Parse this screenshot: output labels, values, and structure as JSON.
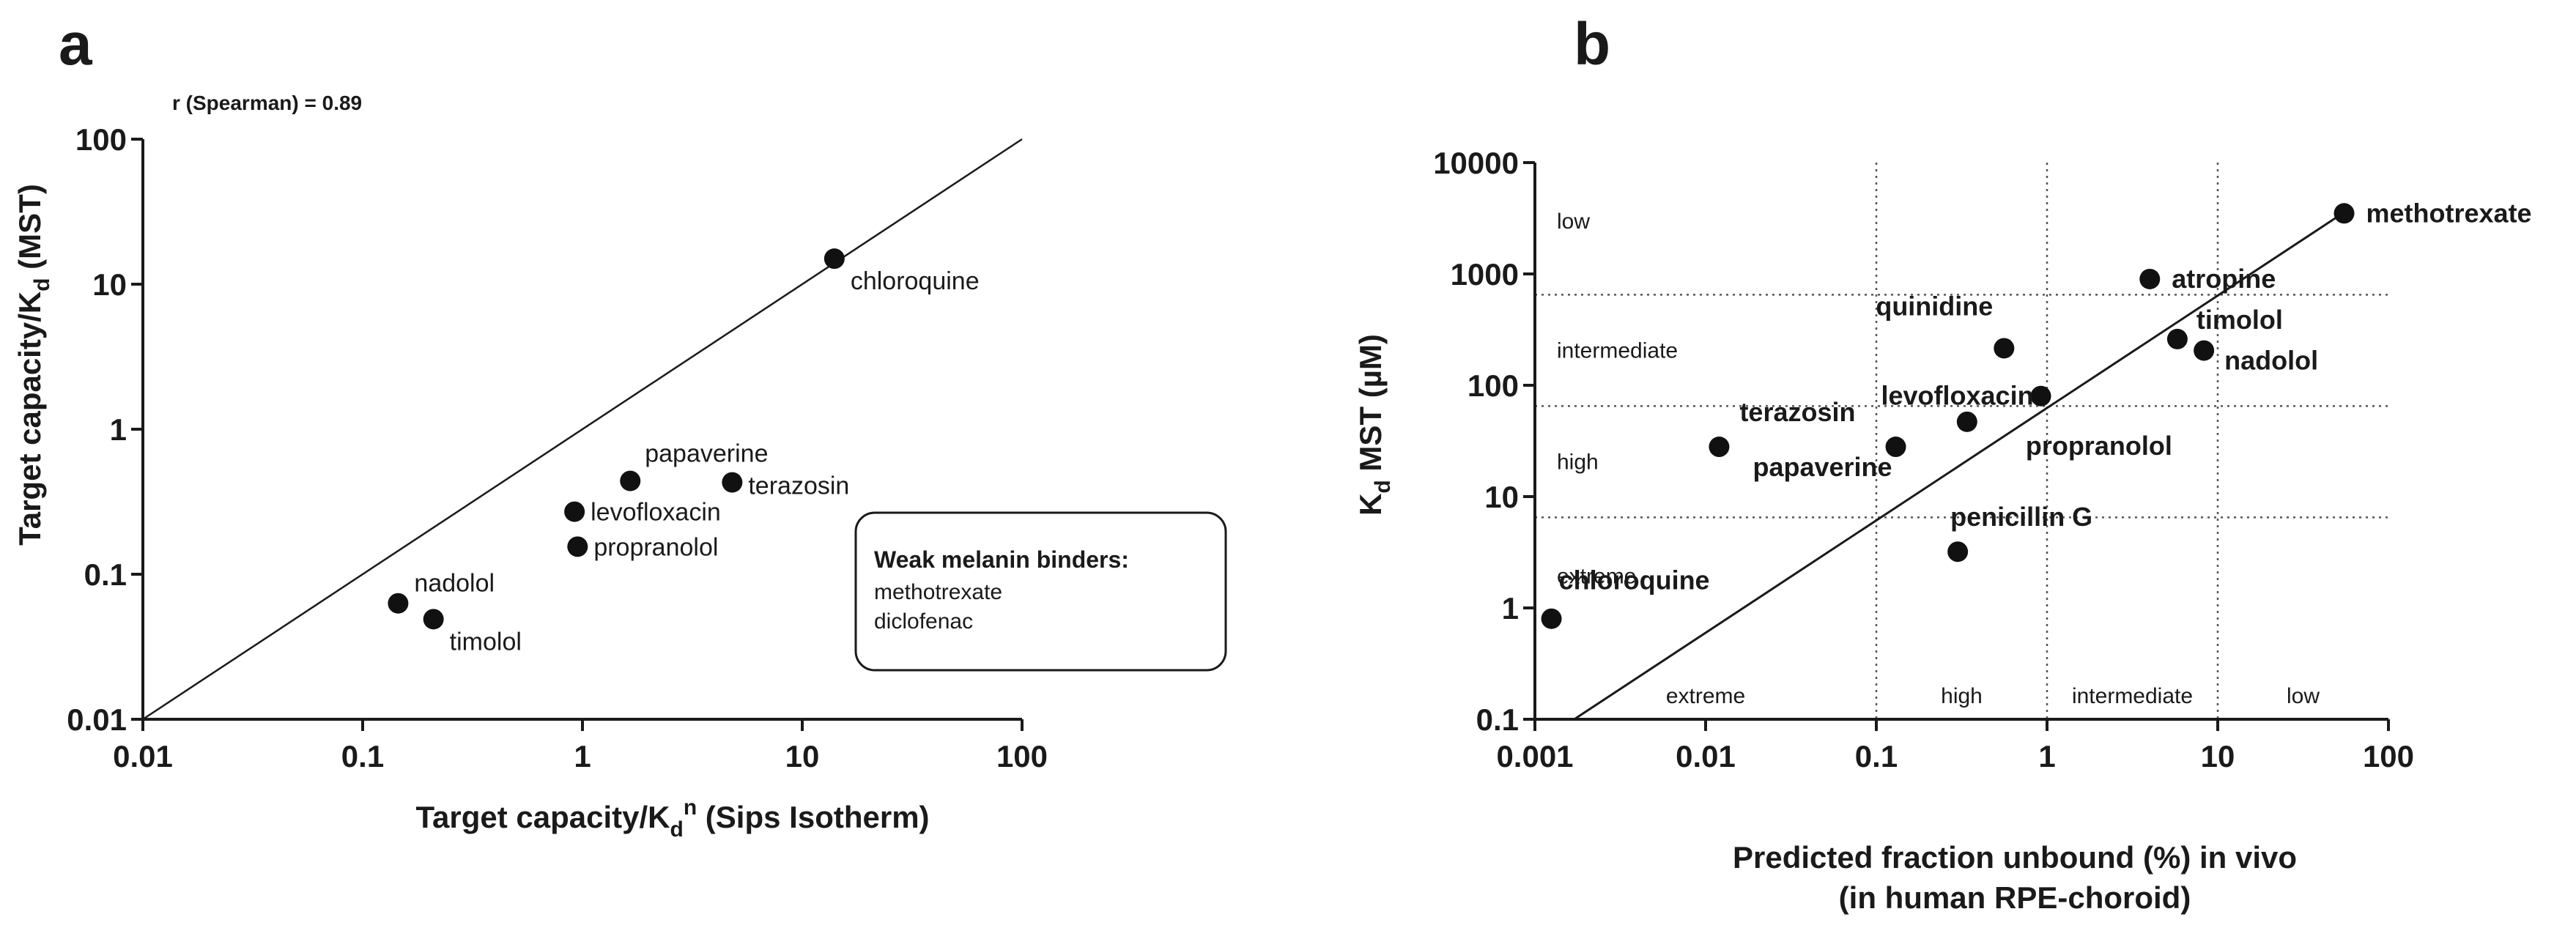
{
  "chart_data": [
    {
      "panel": "a",
      "type": "scatter",
      "scale": "log-log",
      "title": "",
      "stat_text": "r (Spearman) = 0.89",
      "xlabel": "Target capacity/K_d^n (Sips Isotherm)",
      "ylabel": "Target capacity/K_d (MST)",
      "xlim": [
        0.01,
        100
      ],
      "ylim": [
        0.01,
        100
      ],
      "x_ticks": [
        "0.01",
        "0.1",
        "1",
        "10",
        "100"
      ],
      "y_ticks": [
        "0.01",
        "0.1",
        "1",
        "10",
        "100"
      ],
      "reference_line": "identity (y = x)",
      "points": [
        {
          "label": "chloroquine",
          "x": 14,
          "y": 15
        },
        {
          "label": "papaverine",
          "x": 1.65,
          "y": 0.44
        },
        {
          "label": "terazosin",
          "x": 4.8,
          "y": 0.43
        },
        {
          "label": "levofloxacin",
          "x": 0.92,
          "y": 0.27
        },
        {
          "label": "propranolol",
          "x": 0.95,
          "y": 0.155
        },
        {
          "label": "nadolol",
          "x": 0.145,
          "y": 0.063
        },
        {
          "label": "timolol",
          "x": 0.21,
          "y": 0.049
        }
      ],
      "annotation_box": {
        "title": "Weak melanin binders:",
        "items": [
          "methotrexate",
          "diclofenac"
        ]
      }
    },
    {
      "panel": "b",
      "type": "scatter",
      "scale": "log-log",
      "title": "",
      "xlabel_line1": "Predicted fraction unbound (%) in vivo",
      "xlabel_line2": "(in human RPE-choroid)",
      "ylabel": "K_d MST (µM)",
      "xlim": [
        0.001,
        100
      ],
      "ylim": [
        0.1,
        10000
      ],
      "x_ticks": [
        "0.001",
        "0.01",
        "0.1",
        "1",
        "10",
        "100"
      ],
      "y_ticks": [
        "0.1",
        "1",
        "10",
        "100",
        "1000",
        "10000"
      ],
      "vertical_dividers_x": [
        0.1,
        1,
        10
      ],
      "horizontal_dividers_y": [
        6.5,
        65,
        650
      ],
      "x_zones": [
        "extreme",
        "high",
        "intermediate",
        "low"
      ],
      "y_zones": [
        "low",
        "intermediate",
        "high",
        "extreme"
      ],
      "trend_line": "linear (log-log) fit",
      "points": [
        {
          "label": "methotrexate",
          "x": 55,
          "y": 3500
        },
        {
          "label": "atropine",
          "x": 4,
          "y": 900
        },
        {
          "label": "timolol",
          "x": 5.8,
          "y": 260
        },
        {
          "label": "nadolol",
          "x": 8.3,
          "y": 205
        },
        {
          "label": "quinidine",
          "x": 0.56,
          "y": 215
        },
        {
          "label": "levofloxacin",
          "x": 0.92,
          "y": 80
        },
        {
          "label": "propranolol",
          "x": 0.34,
          "y": 47
        },
        {
          "label": "terazosin",
          "x": 0.012,
          "y": 28
        },
        {
          "label": "papaverine",
          "x": 0.13,
          "y": 28
        },
        {
          "label": "penicillin G",
          "x": 0.3,
          "y": 3.2
        },
        {
          "label": "chloroquine",
          "x": 0.00125,
          "y": 0.8
        }
      ]
    }
  ],
  "panel_letters": {
    "a": "a",
    "b": "b"
  }
}
